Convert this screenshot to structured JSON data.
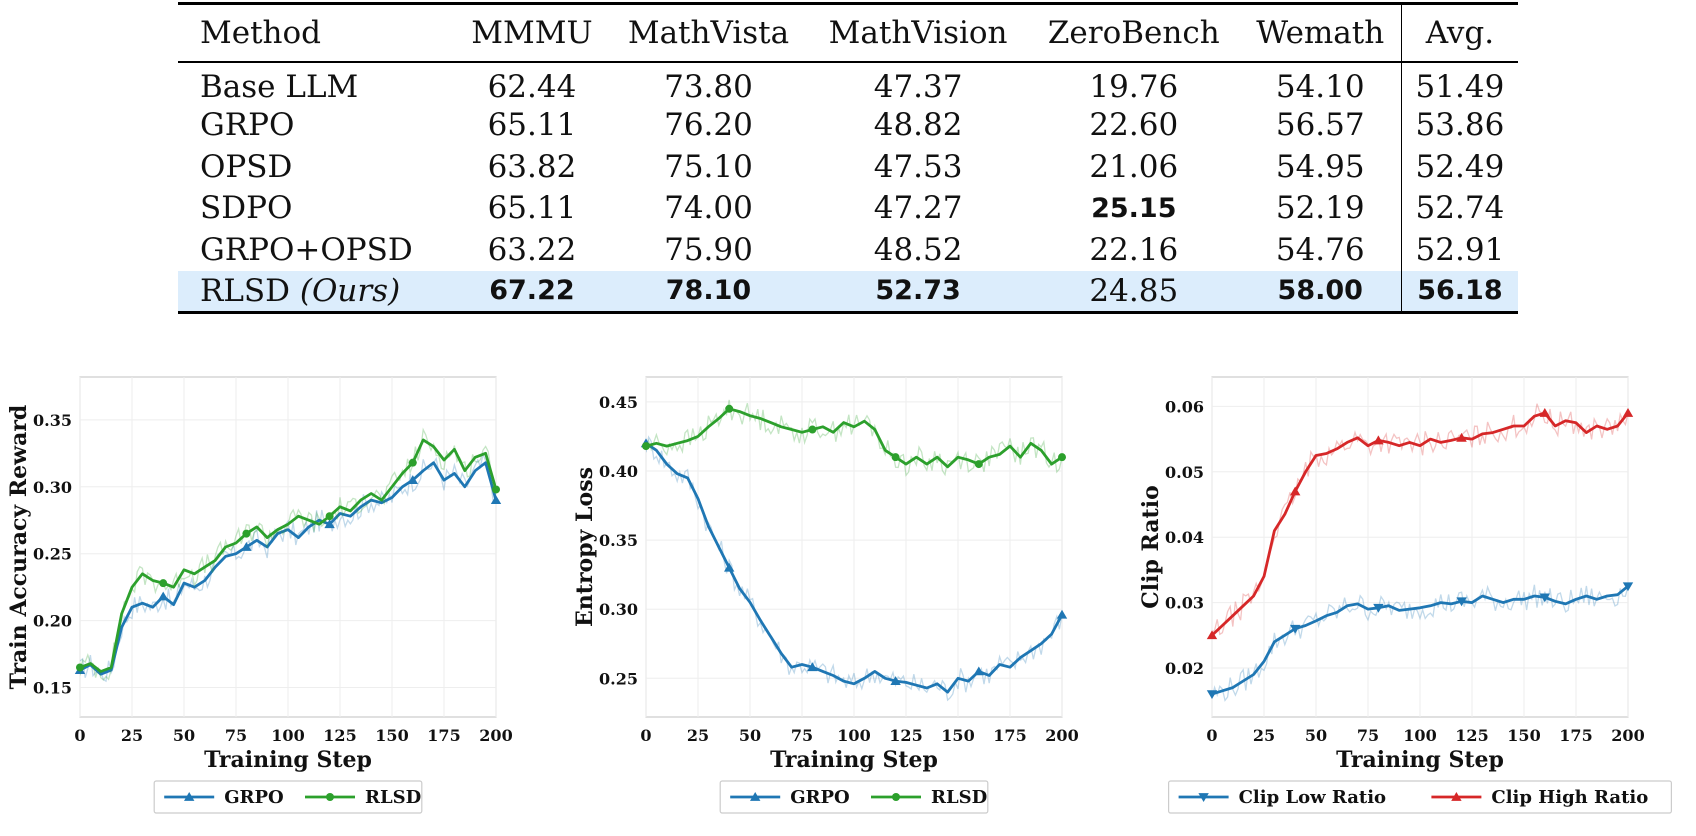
{
  "table": {
    "columns": [
      "Method",
      "MMMU",
      "MathVista",
      "MathVision",
      "ZeroBench",
      "Wemath",
      "Avg."
    ],
    "rows": [
      {
        "method": "Base LLM",
        "ours_tag": "",
        "values": [
          "62.44",
          "73.80",
          "47.37",
          "19.76",
          "54.10",
          "51.49"
        ],
        "best": [
          false,
          false,
          false,
          false,
          false,
          false
        ],
        "highlight": false
      },
      {
        "method": "GRPO",
        "ours_tag": "",
        "values": [
          "65.11",
          "76.20",
          "48.82",
          "22.60",
          "56.57",
          "53.86"
        ],
        "best": [
          false,
          false,
          false,
          false,
          false,
          false
        ],
        "highlight": false
      },
      {
        "method": "OPSD",
        "ours_tag": "",
        "values": [
          "63.82",
          "75.10",
          "47.53",
          "21.06",
          "54.95",
          "52.49"
        ],
        "best": [
          false,
          false,
          false,
          false,
          false,
          false
        ],
        "highlight": false
      },
      {
        "method": "SDPO",
        "ours_tag": "",
        "values": [
          "65.11",
          "74.00",
          "47.27",
          "25.15",
          "52.19",
          "52.74"
        ],
        "best": [
          false,
          false,
          false,
          true,
          false,
          false
        ],
        "highlight": false
      },
      {
        "method": "GRPO+OPSD",
        "ours_tag": "",
        "values": [
          "63.22",
          "75.90",
          "48.52",
          "22.16",
          "54.76",
          "52.91"
        ],
        "best": [
          false,
          false,
          false,
          false,
          false,
          false
        ],
        "highlight": false
      },
      {
        "method": "RLSD ",
        "ours_tag": "(Ours)",
        "values": [
          "67.22",
          "78.10",
          "52.73",
          "24.85",
          "58.00",
          "56.18"
        ],
        "best": [
          true,
          true,
          true,
          false,
          true,
          true
        ],
        "highlight": true
      }
    ]
  },
  "chart_data": [
    {
      "type": "line",
      "xlabel": "Training Step",
      "ylabel": "Train Accuracy Reward",
      "xlim": [
        0,
        200
      ],
      "ylim": [
        0.128,
        0.382
      ],
      "xticks": [
        0,
        25,
        50,
        75,
        100,
        125,
        150,
        175,
        200
      ],
      "yticks": [
        0.15,
        0.2,
        0.25,
        0.3,
        0.35
      ],
      "ytick_decimals": 2,
      "grid": true,
      "legend": "bottom-center",
      "series": [
        {
          "name": "GRPO",
          "color": "#1f77b4",
          "marker": "triangle-up",
          "x": [
            0,
            5,
            10,
            15,
            20,
            25,
            30,
            35,
            40,
            45,
            50,
            55,
            60,
            65,
            70,
            75,
            80,
            85,
            90,
            95,
            100,
            105,
            110,
            115,
            120,
            125,
            130,
            135,
            140,
            145,
            150,
            155,
            160,
            165,
            170,
            175,
            180,
            185,
            190,
            195,
            200
          ],
          "y": [
            0.163,
            0.167,
            0.16,
            0.163,
            0.195,
            0.21,
            0.213,
            0.21,
            0.218,
            0.212,
            0.228,
            0.225,
            0.23,
            0.24,
            0.248,
            0.25,
            0.255,
            0.26,
            0.255,
            0.265,
            0.268,
            0.262,
            0.27,
            0.275,
            0.272,
            0.28,
            0.278,
            0.285,
            0.29,
            0.288,
            0.292,
            0.3,
            0.305,
            0.312,
            0.318,
            0.305,
            0.31,
            0.3,
            0.312,
            0.318,
            0.29
          ]
        },
        {
          "name": "RLSD",
          "color": "#2ca02c",
          "marker": "circle",
          "x": [
            0,
            5,
            10,
            15,
            20,
            25,
            30,
            35,
            40,
            45,
            50,
            55,
            60,
            65,
            70,
            75,
            80,
            85,
            90,
            95,
            100,
            105,
            110,
            115,
            120,
            125,
            130,
            135,
            140,
            145,
            150,
            155,
            160,
            165,
            170,
            175,
            180,
            185,
            190,
            195,
            200
          ],
          "y": [
            0.165,
            0.168,
            0.162,
            0.165,
            0.205,
            0.225,
            0.235,
            0.23,
            0.228,
            0.225,
            0.238,
            0.235,
            0.24,
            0.245,
            0.255,
            0.258,
            0.265,
            0.27,
            0.262,
            0.268,
            0.272,
            0.278,
            0.275,
            0.272,
            0.278,
            0.285,
            0.282,
            0.29,
            0.295,
            0.29,
            0.3,
            0.31,
            0.318,
            0.335,
            0.33,
            0.32,
            0.328,
            0.312,
            0.322,
            0.325,
            0.298
          ]
        }
      ]
    },
    {
      "type": "line",
      "xlabel": "Training Step",
      "ylabel": "Entropy Loss",
      "xlim": [
        0,
        200
      ],
      "ylim": [
        0.222,
        0.468
      ],
      "xticks": [
        0,
        25,
        50,
        75,
        100,
        125,
        150,
        175,
        200
      ],
      "yticks": [
        0.25,
        0.3,
        0.35,
        0.4,
        0.45
      ],
      "ytick_decimals": 2,
      "grid": true,
      "legend": "bottom-center",
      "series": [
        {
          "name": "GRPO",
          "color": "#1f77b4",
          "marker": "triangle-up",
          "x": [
            0,
            5,
            10,
            15,
            20,
            25,
            30,
            35,
            40,
            45,
            50,
            55,
            60,
            65,
            70,
            75,
            80,
            85,
            90,
            95,
            100,
            105,
            110,
            115,
            120,
            125,
            130,
            135,
            140,
            145,
            150,
            155,
            160,
            165,
            170,
            175,
            180,
            185,
            190,
            195,
            200
          ],
          "y": [
            0.42,
            0.415,
            0.405,
            0.398,
            0.395,
            0.38,
            0.36,
            0.345,
            0.33,
            0.315,
            0.305,
            0.292,
            0.28,
            0.268,
            0.258,
            0.26,
            0.258,
            0.255,
            0.252,
            0.248,
            0.246,
            0.25,
            0.255,
            0.25,
            0.248,
            0.247,
            0.245,
            0.243,
            0.246,
            0.24,
            0.25,
            0.248,
            0.255,
            0.252,
            0.26,
            0.258,
            0.265,
            0.27,
            0.275,
            0.282,
            0.296
          ]
        },
        {
          "name": "RLSD",
          "color": "#2ca02c",
          "marker": "circle",
          "x": [
            0,
            5,
            10,
            15,
            20,
            25,
            30,
            35,
            40,
            45,
            50,
            55,
            60,
            65,
            70,
            75,
            80,
            85,
            90,
            95,
            100,
            105,
            110,
            115,
            120,
            125,
            130,
            135,
            140,
            145,
            150,
            155,
            160,
            165,
            170,
            175,
            180,
            185,
            190,
            195,
            200
          ],
          "y": [
            0.418,
            0.42,
            0.418,
            0.42,
            0.422,
            0.425,
            0.432,
            0.438,
            0.445,
            0.443,
            0.44,
            0.438,
            0.435,
            0.432,
            0.43,
            0.428,
            0.43,
            0.432,
            0.428,
            0.435,
            0.432,
            0.436,
            0.43,
            0.415,
            0.41,
            0.405,
            0.41,
            0.405,
            0.41,
            0.403,
            0.41,
            0.408,
            0.405,
            0.41,
            0.412,
            0.418,
            0.41,
            0.42,
            0.415,
            0.405,
            0.41
          ]
        }
      ]
    },
    {
      "type": "line",
      "xlabel": "Training Step",
      "ylabel": "Clip Ratio",
      "xlim": [
        0,
        200
      ],
      "ylim": [
        0.0125,
        0.0645
      ],
      "xticks": [
        0,
        25,
        50,
        75,
        100,
        125,
        150,
        175,
        200
      ],
      "yticks": [
        0.02,
        0.03,
        0.04,
        0.05,
        0.06
      ],
      "ytick_decimals": 2,
      "grid": true,
      "legend": "bottom-center",
      "series": [
        {
          "name": "Clip Low Ratio",
          "color": "#1f77b4",
          "marker": "triangle-down",
          "x": [
            0,
            5,
            10,
            15,
            20,
            25,
            30,
            35,
            40,
            45,
            50,
            55,
            60,
            65,
            70,
            75,
            80,
            85,
            90,
            95,
            100,
            105,
            110,
            115,
            120,
            125,
            130,
            135,
            140,
            145,
            150,
            155,
            160,
            165,
            170,
            175,
            180,
            185,
            190,
            195,
            200
          ],
          "y": [
            0.016,
            0.0165,
            0.017,
            0.018,
            0.019,
            0.021,
            0.024,
            0.025,
            0.026,
            0.0265,
            0.0272,
            0.028,
            0.0285,
            0.0295,
            0.0298,
            0.029,
            0.0292,
            0.0295,
            0.0288,
            0.029,
            0.0292,
            0.0295,
            0.03,
            0.0298,
            0.0302,
            0.03,
            0.031,
            0.0305,
            0.03,
            0.0305,
            0.0305,
            0.031,
            0.0308,
            0.0302,
            0.0298,
            0.0305,
            0.031,
            0.0305,
            0.031,
            0.0312,
            0.0325
          ]
        },
        {
          "name": "Clip High Ratio",
          "color": "#d62728",
          "marker": "triangle-up",
          "x": [
            0,
            5,
            10,
            15,
            20,
            25,
            30,
            35,
            40,
            45,
            50,
            55,
            60,
            65,
            70,
            75,
            80,
            85,
            90,
            95,
            100,
            105,
            110,
            115,
            120,
            125,
            130,
            135,
            140,
            145,
            150,
            155,
            160,
            165,
            170,
            175,
            180,
            185,
            190,
            195,
            200
          ],
          "y": [
            0.025,
            0.0265,
            0.028,
            0.0295,
            0.031,
            0.034,
            0.041,
            0.0435,
            0.047,
            0.05,
            0.0525,
            0.0528,
            0.0535,
            0.0545,
            0.0552,
            0.054,
            0.0548,
            0.0545,
            0.054,
            0.0545,
            0.054,
            0.055,
            0.0545,
            0.0548,
            0.0552,
            0.055,
            0.0558,
            0.056,
            0.0565,
            0.057,
            0.057,
            0.0585,
            0.059,
            0.057,
            0.0578,
            0.0575,
            0.056,
            0.057,
            0.0565,
            0.057,
            0.059
          ]
        }
      ]
    }
  ]
}
